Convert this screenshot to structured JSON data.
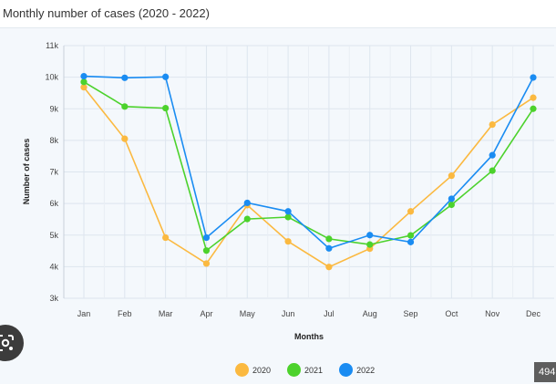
{
  "chart_data": {
    "type": "line",
    "title": "Monthly number of cases (2020 - 2022)",
    "xlabel": "Months",
    "ylabel": "Number of cases",
    "categories": [
      "Jan",
      "Feb",
      "Mar",
      "Apr",
      "May",
      "Jun",
      "Jul",
      "Aug",
      "Sep",
      "Oct",
      "Nov",
      "Dec"
    ],
    "ylim": [
      3000,
      11000
    ],
    "yticks": [
      {
        "value": 3000,
        "label": "3k"
      },
      {
        "value": 4000,
        "label": "4k"
      },
      {
        "value": 5000,
        "label": "5k"
      },
      {
        "value": 6000,
        "label": "6k"
      },
      {
        "value": 7000,
        "label": "7k"
      },
      {
        "value": 8000,
        "label": "8k"
      },
      {
        "value": 9000,
        "label": "9k"
      },
      {
        "value": 10000,
        "label": "10k"
      },
      {
        "value": 11000,
        "label": "11k"
      }
    ],
    "grid": true,
    "legend_position": "bottom",
    "series": [
      {
        "name": "2020",
        "color": "#fbb940",
        "values": [
          9680,
          8050,
          4920,
          4100,
          5950,
          4800,
          3990,
          4570,
          5750,
          6880,
          8500,
          9350
        ]
      },
      {
        "name": "2021",
        "color": "#4cd22c",
        "values": [
          9850,
          9070,
          9020,
          4510,
          5510,
          5570,
          4880,
          4700,
          4990,
          5960,
          7040,
          9000
        ]
      },
      {
        "name": "2022",
        "color": "#1a8cf2",
        "values": [
          10030,
          9980,
          10010,
          4920,
          6020,
          5750,
          4580,
          5000,
          4780,
          6150,
          7530,
          9990
        ]
      }
    ]
  },
  "ui": {
    "lens_icon": "google-lens-icon",
    "size_badge": "494"
  }
}
